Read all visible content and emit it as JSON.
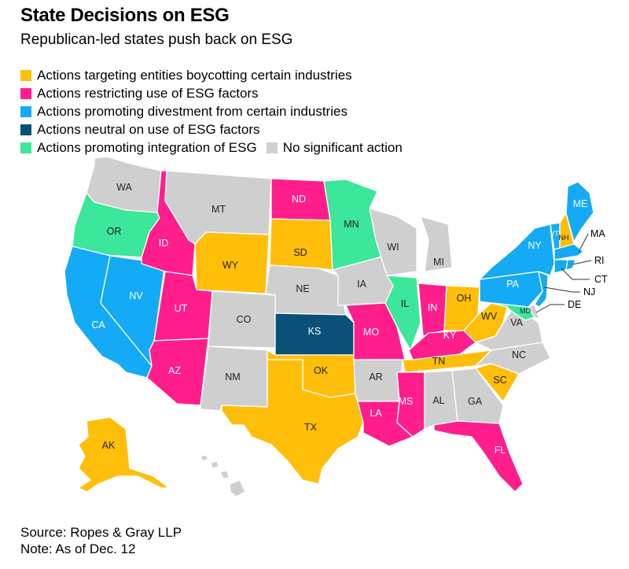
{
  "title": "State Decisions on ESG",
  "subtitle": "Republican-led states push back on ESG",
  "legend": [
    {
      "key": "boycott",
      "label": "Actions targeting entities boycotting certain industries",
      "color": "#FFBE0A"
    },
    {
      "key": "restrict",
      "label": "Actions restricting use of ESG factors",
      "color": "#FF1E8C"
    },
    {
      "key": "divest",
      "label": "Actions promoting divestment from certain industries",
      "color": "#14AAF5"
    },
    {
      "key": "neutral",
      "label": "Actions neutral on use of ESG factors",
      "color": "#0A5078"
    },
    {
      "key": "integrate",
      "label": "Actions promoting integration of ESG",
      "color": "#3CE69B"
    },
    {
      "key": "none",
      "label": "No significant action",
      "color": "#CFCFCF"
    }
  ],
  "states": {
    "WA": "none",
    "OR": "integrate",
    "CA": "divest",
    "NV": "divest",
    "ID": "restrict",
    "MT": "none",
    "WY": "boycott",
    "UT": "restrict",
    "AZ": "restrict",
    "CO": "none",
    "NM": "none",
    "ND": "restrict",
    "SD": "boycott",
    "NE": "none",
    "KS": "neutral",
    "OK": "boycott",
    "TX": "boycott",
    "MN": "integrate",
    "IA": "none",
    "MO": "restrict",
    "AR": "none",
    "LA": "restrict",
    "WI": "none",
    "IL": "integrate",
    "MI": "none",
    "IN": "restrict",
    "OH": "boycott",
    "KY": "restrict",
    "TN": "boycott",
    "MS": "restrict",
    "AL": "none",
    "GA": "none",
    "FL": "restrict",
    "SC": "boycott",
    "NC": "none",
    "VA": "none",
    "WV": "boycott",
    "PA": "divest",
    "NY": "divest",
    "VT": "divest",
    "NH": "boycott",
    "ME": "divest",
    "MA": "divest",
    "RI": "divest",
    "CT": "divest",
    "NJ": "divest",
    "DE": "none",
    "MD": "integrate",
    "AK": "boycott",
    "HI": "none"
  },
  "callouts": [
    "MA",
    "RI",
    "CT",
    "NJ",
    "DE"
  ],
  "source": "Source: Ropes & Gray LLP",
  "note": "Note: As of Dec. 12"
}
